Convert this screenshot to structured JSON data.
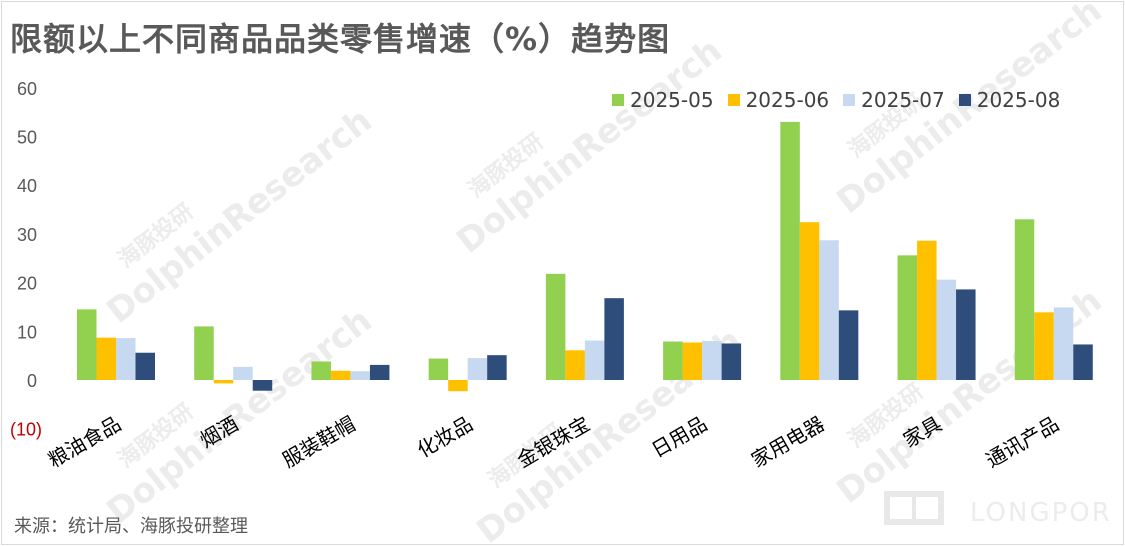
{
  "title": "限额以上不同商品品类零售增速（%）趋势图",
  "source": "来源：统计局、海豚投研整理",
  "watermark": {
    "cn": "海豚投研",
    "en": "DolphinResearch",
    "brand": "LONGPORT"
  },
  "chart_data": {
    "type": "bar",
    "title": "限额以上不同商品品类零售增速（%）趋势图",
    "categories": [
      "粮油食品",
      "烟酒",
      "服装鞋帽",
      "化妆品",
      "金银珠宝",
      "日用品",
      "家用电器",
      "家具",
      "通讯产品"
    ],
    "series": [
      {
        "name": "2025-05",
        "color": "#92d050",
        "values": [
          14.5,
          11.0,
          3.8,
          4.4,
          21.8,
          7.9,
          53.0,
          25.6,
          33.0
        ]
      },
      {
        "name": "2025-06",
        "color": "#ffc000",
        "values": [
          8.7,
          -0.7,
          1.9,
          -2.3,
          6.1,
          7.7,
          32.4,
          28.6,
          13.9
        ]
      },
      {
        "name": "2025-07",
        "color": "#c6d9f1",
        "values": [
          8.6,
          2.7,
          1.8,
          4.5,
          8.1,
          8.0,
          28.7,
          20.6,
          14.9
        ]
      },
      {
        "name": "2025-08",
        "color": "#2e4d7b",
        "values": [
          5.6,
          -2.2,
          3.1,
          5.1,
          16.8,
          7.5,
          14.3,
          18.6,
          7.3
        ]
      }
    ],
    "ylim": [
      -10,
      60
    ],
    "yticks": [
      60,
      50,
      40,
      30,
      20,
      10,
      0,
      -10
    ],
    "ytick_labels": [
      "60",
      "50",
      "40",
      "30",
      "20",
      "10",
      "0",
      "(10)"
    ],
    "negative_label_color": "#c00000",
    "legend_position": "top-right",
    "grid": false
  }
}
